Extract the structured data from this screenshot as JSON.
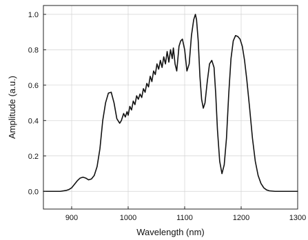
{
  "chart_data": {
    "type": "line",
    "title": "",
    "xlabel": "Wavelength (nm)",
    "ylabel": "Amplitude (a.u.)",
    "xlim": [
      850,
      1300
    ],
    "ylim": [
      -0.1,
      1.05
    ],
    "x_ticks": [
      900,
      1000,
      1100,
      1200,
      1300
    ],
    "x_tick_labels": [
      "900",
      "1000",
      "1100",
      "1200",
      "1300"
    ],
    "y_ticks": [
      0.0,
      0.2,
      0.4,
      0.6,
      0.8,
      1.0
    ],
    "y_tick_labels": [
      "0.0",
      "0.2",
      "0.4",
      "0.6",
      "0.8",
      "1.0"
    ],
    "grid": true,
    "colors": {
      "line": "#111111",
      "grid": "#d2d2d2",
      "frame": "#222222"
    },
    "series": [
      {
        "x": [
          850,
          880,
          890,
          895,
          900,
          905,
          910,
          915,
          920,
          925,
          930,
          935,
          940,
          945,
          950,
          955,
          960,
          965,
          970,
          975,
          980,
          985,
          988,
          992,
          995,
          998,
          1000,
          1003,
          1006,
          1009,
          1012,
          1015,
          1018,
          1021,
          1024,
          1027,
          1030,
          1033,
          1036,
          1039,
          1042,
          1045,
          1048,
          1051,
          1054,
          1057,
          1060,
          1063,
          1066,
          1069,
          1072,
          1075,
          1078,
          1080,
          1083,
          1086,
          1090,
          1093,
          1096,
          1100,
          1104,
          1108,
          1112,
          1116,
          1119,
          1121,
          1124,
          1127,
          1130,
          1133,
          1136,
          1140,
          1144,
          1148,
          1152,
          1155,
          1158,
          1162,
          1166,
          1170,
          1174,
          1178,
          1182,
          1186,
          1190,
          1194,
          1198,
          1202,
          1206,
          1210,
          1215,
          1220,
          1225,
          1230,
          1235,
          1240,
          1245,
          1250,
          1260,
          1280,
          1300
        ],
        "y": [
          0.0,
          0.0,
          0.005,
          0.01,
          0.02,
          0.04,
          0.06,
          0.075,
          0.08,
          0.075,
          0.065,
          0.07,
          0.09,
          0.14,
          0.24,
          0.4,
          0.5,
          0.555,
          0.56,
          0.5,
          0.41,
          0.385,
          0.4,
          0.44,
          0.42,
          0.45,
          0.43,
          0.48,
          0.46,
          0.51,
          0.49,
          0.54,
          0.52,
          0.55,
          0.53,
          0.58,
          0.56,
          0.61,
          0.59,
          0.65,
          0.62,
          0.68,
          0.66,
          0.72,
          0.69,
          0.74,
          0.7,
          0.76,
          0.72,
          0.79,
          0.73,
          0.8,
          0.75,
          0.81,
          0.72,
          0.68,
          0.82,
          0.85,
          0.86,
          0.8,
          0.68,
          0.72,
          0.88,
          0.97,
          1.0,
          0.97,
          0.85,
          0.65,
          0.52,
          0.47,
          0.5,
          0.62,
          0.72,
          0.74,
          0.7,
          0.55,
          0.35,
          0.17,
          0.1,
          0.15,
          0.3,
          0.55,
          0.75,
          0.85,
          0.88,
          0.875,
          0.86,
          0.82,
          0.74,
          0.63,
          0.47,
          0.3,
          0.17,
          0.09,
          0.045,
          0.02,
          0.008,
          0.003,
          0.0,
          0.0,
          0.0
        ]
      }
    ]
  }
}
